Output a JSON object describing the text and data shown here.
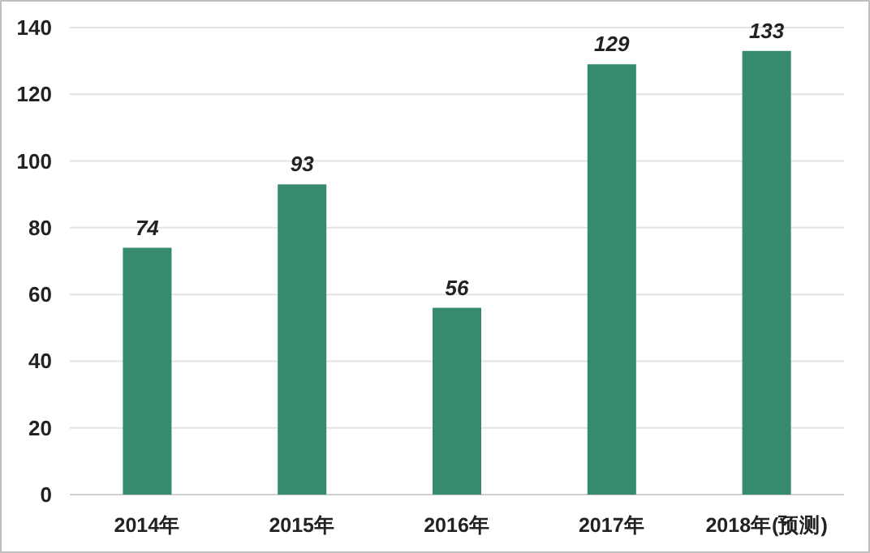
{
  "chart_data": {
    "type": "bar",
    "categories": [
      "2014年",
      "2015年",
      "2016年",
      "2017年",
      "2018年(预测)"
    ],
    "values": [
      74,
      93,
      56,
      129,
      133
    ],
    "color": "#358a70",
    "ylim": [
      0,
      140
    ],
    "yticks": [
      0,
      20,
      40,
      60,
      80,
      100,
      120,
      140
    ],
    "grid": "y",
    "data_labels": true
  }
}
